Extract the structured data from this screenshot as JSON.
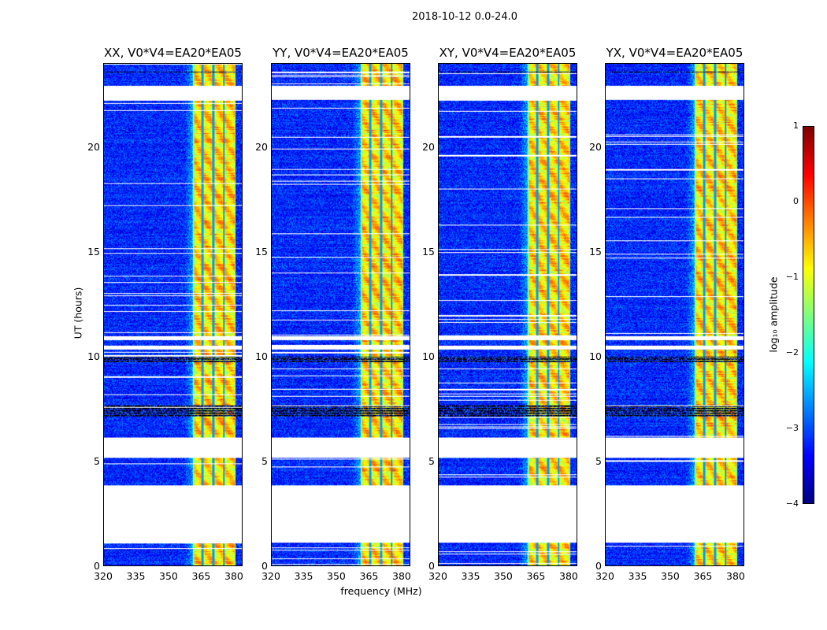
{
  "chart_data": {
    "type": "heatmap",
    "title": "2018-10-12 0.0-24.0",
    "xlabel": "frequency (MHz)",
    "ylabel": "UT (hours)",
    "xlim": [
      320,
      384
    ],
    "ylim": [
      0,
      24
    ],
    "xticks": [
      "320",
      "335",
      "350",
      "365",
      "380"
    ],
    "xtick_values": [
      320,
      335,
      350,
      365,
      380
    ],
    "yticks": [
      "0",
      "5",
      "10",
      "15",
      "20"
    ],
    "ytick_values": [
      0,
      5,
      10,
      15,
      20
    ],
    "panels": [
      {
        "title": "XX, V0*V4=EA20*EA05"
      },
      {
        "title": "YY, V0*V4=EA20*EA05"
      },
      {
        "title": "XY, V0*V4=EA20*EA05"
      },
      {
        "title": "YX, V0*V4=EA20*EA05"
      }
    ],
    "colormap": "jet",
    "colorbar": {
      "label": "log₁₀ amplitude",
      "range": [
        -4,
        1
      ],
      "ticks": [
        "1",
        "0",
        "−1",
        "−2",
        "−3",
        "−4"
      ],
      "tick_values": [
        1,
        0,
        -1,
        -2,
        -3,
        -4
      ]
    },
    "background_level": -3.2,
    "rfi_band_mhz": [
      361,
      381
    ],
    "rfi_band_level": -0.7,
    "rfi_notch_channels_mhz": [
      365.5,
      370.5,
      375.5
    ],
    "flagged_intervals_hours": [
      [
        1.1,
        3.85
      ],
      [
        5.15,
        6.15
      ],
      [
        10.35,
        10.55
      ],
      [
        10.8,
        11.0
      ],
      [
        22.3,
        22.95
      ]
    ],
    "black_intervals_hours": [
      [
        3.85,
        3.9
      ],
      [
        7.1,
        7.7
      ],
      [
        9.7,
        10.0
      ],
      [
        22.1,
        22.15
      ],
      [
        23.6,
        23.65
      ]
    ]
  }
}
